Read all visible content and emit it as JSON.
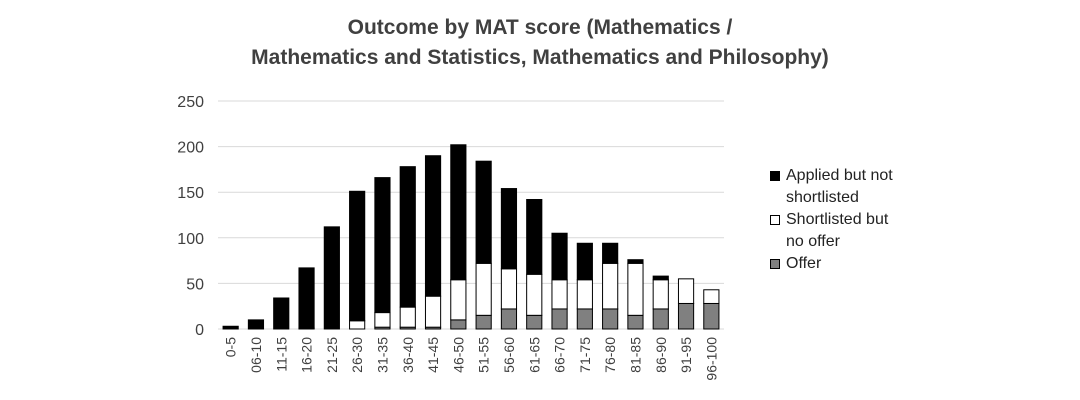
{
  "chart_data": {
    "type": "stacked-bar",
    "title": [
      "Outcome by MAT score (Mathematics /",
      "Mathematics and Statistics, Mathematics and Philosophy)"
    ],
    "categories": [
      "0-5",
      "06-10",
      "11-15",
      "16-20",
      "21-25",
      "26-30",
      "31-35",
      "36-40",
      "41-45",
      "46-50",
      "51-55",
      "56-60",
      "61-65",
      "66-70",
      "71-75",
      "76-80",
      "81-85",
      "86-90",
      "91-95",
      "96-100"
    ],
    "series": [
      {
        "name": "Applied but not shortlisted",
        "color": "#000000",
        "values": [
          3,
          10,
          34,
          66,
          112,
          142,
          148,
          154,
          154,
          148,
          112,
          88,
          82,
          51,
          40,
          22,
          4,
          4,
          0,
          0
        ]
      },
      {
        "name": "Shortlisted but no offer",
        "color": "#ffffff",
        "values": [
          0,
          0,
          0,
          1,
          0,
          9,
          16,
          22,
          34,
          44,
          57,
          44,
          45,
          32,
          32,
          50,
          57,
          32,
          27,
          15
        ]
      },
      {
        "name": "Offer",
        "color": "#808080",
        "values": [
          0,
          0,
          0,
          0,
          0,
          0,
          2,
          2,
          2,
          10,
          15,
          22,
          15,
          22,
          22,
          22,
          15,
          22,
          28,
          28
        ]
      }
    ],
    "ylim": [
      0,
      250
    ],
    "yticks": [
      0,
      50,
      100,
      150,
      200,
      250
    ],
    "grid": true
  }
}
